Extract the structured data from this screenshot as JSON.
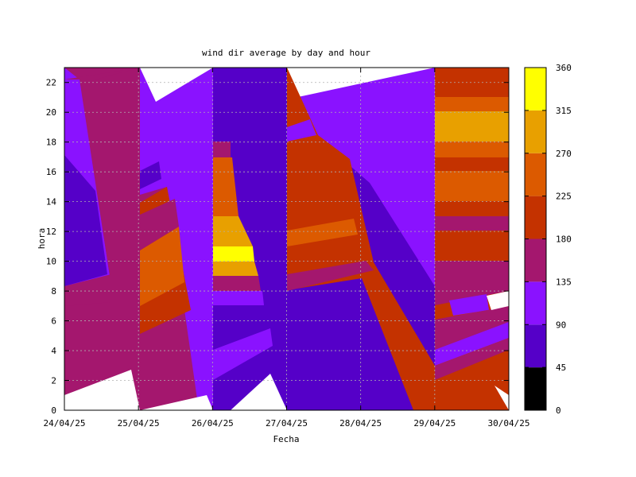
{
  "chart_data": {
    "type": "heatmap",
    "title": "wind dir average by day and hour",
    "xlabel": "Fecha",
    "ylabel": "hora",
    "x_tick_labels": [
      "24/04/25",
      "25/04/25",
      "26/04/25",
      "27/04/25",
      "28/04/25",
      "29/04/25",
      "30/04/25"
    ],
    "y_ticks": [
      0,
      2,
      4,
      6,
      8,
      10,
      12,
      14,
      16,
      18,
      20,
      22
    ],
    "ylim": [
      0,
      23
    ],
    "grid": true,
    "colorbar": {
      "ticks": [
        0,
        45,
        90,
        135,
        180,
        225,
        270,
        315,
        360
      ],
      "colors": [
        "#000000",
        "#5500c8",
        "#8a12ff",
        "#a4176e",
        "#c43200",
        "#dc5a00",
        "#e8a000",
        "#ffff00"
      ]
    },
    "approx_columns": [
      {
        "date": "24/04/25",
        "dominant_value_range": [
          135,
          180
        ],
        "low_hours_value_range": [
          90,
          135
        ]
      },
      {
        "date": "25/04/25",
        "dominant_value_range": [
          135,
          180
        ]
      },
      {
        "date": "26/04/25",
        "dominant_value_range": [
          90,
          135
        ],
        "peak_value_range": [
          315,
          360
        ],
        "peak_hours": [
          10,
          11
        ]
      },
      {
        "date": "27/04/25",
        "dominant_value_range": [
          180,
          225
        ],
        "low_hours_value_range": [
          45,
          90
        ]
      },
      {
        "date": "28/04/25",
        "dominant_value_range": [
          90,
          135
        ]
      },
      {
        "date": "29/04/25",
        "dominant_value_range": [
          180,
          225
        ],
        "evening_value_range": [
          270,
          315
        ]
      },
      {
        "date": "30/04/25",
        "dominant_value_range": [
          180,
          225
        ]
      }
    ]
  }
}
